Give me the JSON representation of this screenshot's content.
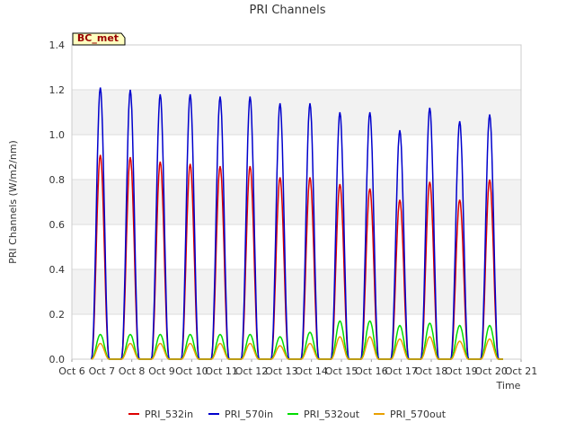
{
  "chart_data": {
    "type": "line",
    "title": "PRI Channels",
    "xlabel": "Time",
    "ylabel": "PRI Channels (W/m2/nm)",
    "ylim": [
      0,
      1.4
    ],
    "yticks": [
      "0.0",
      "0.2",
      "0.4",
      "0.6",
      "0.8",
      "1.0",
      "1.2",
      "1.4"
    ],
    "xlim": [
      6,
      21
    ],
    "xticks": [
      "Oct 6",
      "Oct 7",
      "Oct 8",
      "Oct 9",
      "Oct 10",
      "Oct 11",
      "Oct 12",
      "Oct 13",
      "Oct 14",
      "Oct 15",
      "Oct 16",
      "Oct 17",
      "Oct 18",
      "Oct 19",
      "Oct 20",
      "Oct 21"
    ],
    "annotation": "BC_met",
    "legend_position": "bottom",
    "series": [
      {
        "name": "PRI_532in",
        "color": "#dd0000",
        "peaks": [
          0.91,
          0.9,
          0.88,
          0.87,
          0.86,
          0.86,
          0.81,
          0.81,
          0.78,
          0.76,
          0.71,
          0.79,
          0.71,
          0.8
        ]
      },
      {
        "name": "PRI_570in",
        "color": "#0000cc",
        "peaks": [
          1.21,
          1.2,
          1.18,
          1.18,
          1.17,
          1.17,
          1.14,
          1.14,
          1.1,
          1.1,
          1.02,
          1.12,
          1.06,
          1.09
        ]
      },
      {
        "name": "PRI_532out",
        "color": "#00dd00",
        "peaks": [
          0.11,
          0.11,
          0.11,
          0.11,
          0.11,
          0.11,
          0.1,
          0.12,
          0.17,
          0.17,
          0.15,
          0.16,
          0.15,
          0.15
        ]
      },
      {
        "name": "PRI_570out",
        "color": "#e8a000",
        "peaks": [
          0.07,
          0.07,
          0.07,
          0.07,
          0.07,
          0.07,
          0.06,
          0.07,
          0.1,
          0.1,
          0.09,
          0.1,
          0.08,
          0.09
        ]
      }
    ],
    "peak_days": [
      7,
      8,
      9,
      10,
      11,
      12,
      13,
      14,
      15,
      16,
      17,
      18,
      19,
      20
    ]
  }
}
